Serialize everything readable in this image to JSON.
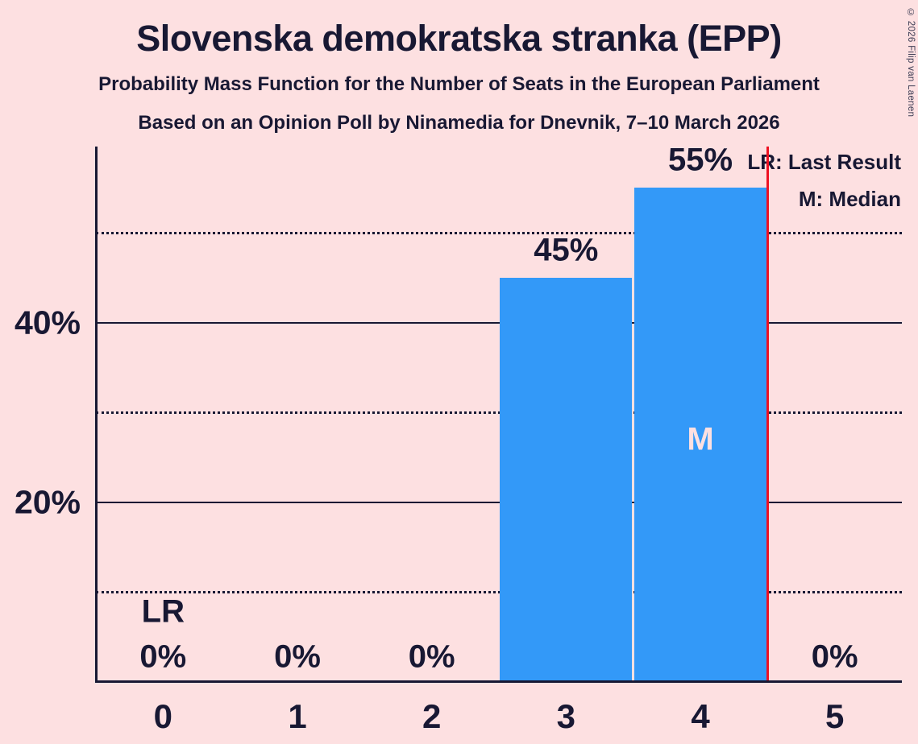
{
  "chart_data": {
    "type": "bar",
    "title": "Slovenska demokratska stranka (EPP)",
    "subtitle": "Probability Mass Function for the Number of Seats in the European Parliament",
    "subsubtitle": "Based on an Opinion Poll by Ninamedia for Dnevnik, 7–10 March 2026",
    "categories": [
      "0",
      "1",
      "2",
      "3",
      "4",
      "5"
    ],
    "values": [
      0,
      0,
      0,
      45,
      55,
      0
    ],
    "bar_labels": [
      "0%",
      "0%",
      "0%",
      "45%",
      "55%",
      "0%"
    ],
    "ylim": [
      0,
      59.6
    ],
    "gridlines_solid_pct": [
      20,
      40
    ],
    "gridlines_dotted_pct": [
      10,
      30,
      50
    ],
    "ytick_labels": [
      {
        "value": 20,
        "text": "20%"
      },
      {
        "value": 40,
        "text": "40%"
      }
    ],
    "legend": [
      "LR: Last Result",
      "M: Median"
    ],
    "annotations": {
      "last_result_label": {
        "text": "LR",
        "seat": 0
      },
      "median_label": {
        "text": "M",
        "seat": 4
      },
      "last_result_line_seat": 4.5
    },
    "colors": {
      "background": "#fde0e1",
      "bar": "#3399f8",
      "text": "#181833",
      "last_result_line": "#ee1122",
      "median_text": "#fde0e1"
    }
  },
  "copyright": "© 2026 Filip van Laenen"
}
